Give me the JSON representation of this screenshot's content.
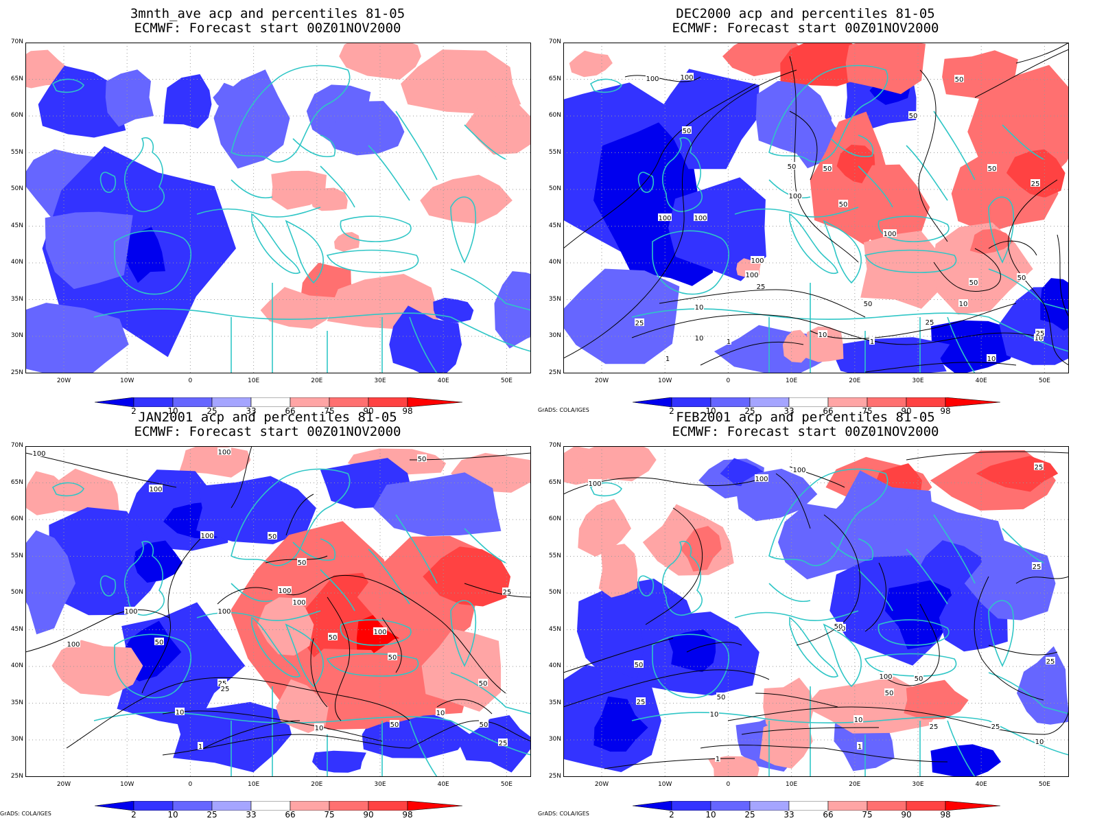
{
  "panels": [
    {
      "id": "p1",
      "title_line1": "3mnth_ave acp and percentiles 81-05",
      "title_line2": "ECMWF: Forecast start 00Z01NOV2000",
      "grads_credit": ""
    },
    {
      "id": "p2",
      "title_line1": "DEC2000 acp and percentiles 81-05",
      "title_line2": "ECMWF: Forecast start 00Z01NOV2000",
      "grads_credit": "GrADS: COLA/IGES"
    },
    {
      "id": "p3",
      "title_line1": "JAN2001 acp and percentiles 81-05",
      "title_line2": "ECMWF: Forecast start 00Z01NOV2000",
      "grads_credit": "GrADS: COLA/IGES"
    },
    {
      "id": "p4",
      "title_line1": "FEB2001 acp and percentiles 81-05",
      "title_line2": "ECMWF: Forecast start 00Z01NOV2000",
      "grads_credit": "GrADS: COLA/IGES"
    }
  ],
  "axes": {
    "lat_labels": [
      "70N",
      "65N",
      "60N",
      "55N",
      "50N",
      "45N",
      "40N",
      "35N",
      "30N",
      "25N"
    ],
    "lon_labels": [
      "20W",
      "10W",
      "0",
      "10E",
      "20E",
      "30E",
      "40E",
      "50E"
    ],
    "lon_range": [
      -25,
      55
    ],
    "lat_range": [
      25,
      70
    ]
  },
  "colorbar": {
    "labels": [
      "2",
      "10",
      "25",
      "33",
      "66",
      "75",
      "90",
      "98"
    ],
    "colors": [
      "#0000ee",
      "#3333ff",
      "#6666ff",
      "#a5a5ff",
      "#ffffff",
      "#ffa5a5",
      "#ff7070",
      "#ff4242",
      "#ff0000"
    ]
  },
  "colors": {
    "coast": "#2fc6c6",
    "contour": "#000000",
    "grid": "#999999"
  },
  "contour_labels": {
    "p2": [
      "100",
      "100",
      "50",
      "50",
      "50",
      "100",
      "50",
      "50",
      "50",
      "50",
      "25",
      "100",
      "100",
      "100",
      "100",
      "100",
      "50",
      "25",
      "10",
      "50",
      "10",
      "1",
      "10",
      "25",
      "1",
      "25",
      "10",
      "10",
      "1",
      "10",
      "50",
      "25"
    ],
    "p3": [
      "100",
      "100",
      "100",
      "100",
      "50",
      "50",
      "50",
      "100",
      "100",
      "50",
      "25",
      "100",
      "100",
      "100",
      "100",
      "50",
      "50",
      "25",
      "10",
      "25",
      "10",
      "1",
      "50",
      "50",
      "10",
      "25",
      "50"
    ],
    "p4": [
      "100",
      "100",
      "100",
      "25",
      "50",
      "25",
      "50",
      "50",
      "100",
      "50",
      "50",
      "25",
      "50",
      "25",
      "10",
      "10",
      "1",
      "1",
      "25",
      "25",
      "10"
    ]
  }
}
